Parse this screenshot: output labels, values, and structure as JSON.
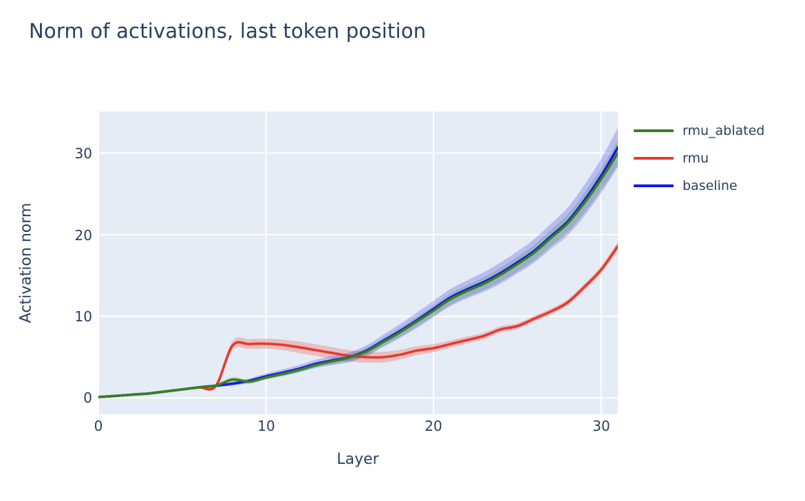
{
  "title": "Norm of activations, last token position",
  "colors": {
    "text": "#2a3f5f",
    "page_bg": "#ffffff",
    "plot_bg": "#e5ecf6",
    "grid": "#ffffff"
  },
  "legend": {
    "items": [
      {
        "label": "rmu_ablated"
      },
      {
        "label": "rmu"
      },
      {
        "label": "baseline"
      }
    ]
  },
  "chart_data": {
    "type": "line",
    "title": "Norm of activations, last token position",
    "xlabel": "Layer",
    "ylabel": "Activation norm",
    "x": [
      0,
      1,
      2,
      3,
      4,
      5,
      6,
      7,
      8,
      9,
      10,
      11,
      12,
      13,
      14,
      15,
      16,
      17,
      18,
      19,
      20,
      21,
      22,
      23,
      24,
      25,
      26,
      27,
      28,
      29,
      30,
      31
    ],
    "xticks": [
      "0",
      "10",
      "20",
      "30"
    ],
    "yticks": [
      "0",
      "10",
      "20",
      "30"
    ],
    "xtick_values": [
      0,
      10,
      20,
      30
    ],
    "ytick_values": [
      0,
      10,
      20,
      30
    ],
    "xlim": [
      0,
      31
    ],
    "ylim": [
      -2,
      35.1
    ],
    "grid": true,
    "legend_position": "outside-top-right",
    "series": [
      {
        "name": "rmu_ablated",
        "color": "#37801f",
        "band_opacity": 0.22,
        "values": [
          0.12,
          0.25,
          0.4,
          0.55,
          0.8,
          1.05,
          1.3,
          1.5,
          2.25,
          2.0,
          2.5,
          2.95,
          3.45,
          4.05,
          4.5,
          4.95,
          5.7,
          6.85,
          8.05,
          9.35,
          10.7,
          12.1,
          13.1,
          14.0,
          15.1,
          16.4,
          17.8,
          19.6,
          21.4,
          23.9,
          26.8,
          30.0
        ],
        "band": [
          0.05,
          0.05,
          0.06,
          0.08,
          0.1,
          0.12,
          0.14,
          0.16,
          0.3,
          0.25,
          0.25,
          0.28,
          0.3,
          0.33,
          0.36,
          0.4,
          0.45,
          0.5,
          0.55,
          0.6,
          0.65,
          0.7,
          0.72,
          0.78,
          0.85,
          0.9,
          0.95,
          1.0,
          1.1,
          1.2,
          1.35,
          1.55
        ]
      },
      {
        "name": "rmu",
        "color": "#e8392b",
        "band_opacity": 0.25,
        "values": [
          0.12,
          0.25,
          0.4,
          0.55,
          0.8,
          1.05,
          1.3,
          1.45,
          6.4,
          6.6,
          6.65,
          6.5,
          6.2,
          5.85,
          5.5,
          5.15,
          5.0,
          5.0,
          5.3,
          5.8,
          6.1,
          6.6,
          7.1,
          7.6,
          8.4,
          8.8,
          9.7,
          10.6,
          11.7,
          13.6,
          15.7,
          18.6
        ],
        "band": [
          0.05,
          0.06,
          0.07,
          0.09,
          0.11,
          0.13,
          0.15,
          0.18,
          0.55,
          0.6,
          0.62,
          0.65,
          0.7,
          0.72,
          0.72,
          0.7,
          0.68,
          0.65,
          0.6,
          0.55,
          0.5,
          0.45,
          0.42,
          0.4,
          0.38,
          0.36,
          0.35,
          0.35,
          0.37,
          0.4,
          0.45,
          0.55
        ]
      },
      {
        "name": "baseline",
        "color": "#1515e8",
        "band_opacity": 0.22,
        "values": [
          0.12,
          0.25,
          0.4,
          0.55,
          0.8,
          1.05,
          1.3,
          1.5,
          1.75,
          2.1,
          2.65,
          3.1,
          3.6,
          4.2,
          4.6,
          5.0,
          5.8,
          7.0,
          8.2,
          9.5,
          10.9,
          12.3,
          13.3,
          14.2,
          15.3,
          16.6,
          18.0,
          19.8,
          21.6,
          24.2,
          27.2,
          30.7
        ],
        "band": [
          0.06,
          0.07,
          0.08,
          0.1,
          0.12,
          0.15,
          0.18,
          0.2,
          0.25,
          0.3,
          0.35,
          0.4,
          0.45,
          0.5,
          0.55,
          0.6,
          0.65,
          0.75,
          0.85,
          0.95,
          1.0,
          1.05,
          1.1,
          1.2,
          1.3,
          1.35,
          1.45,
          1.55,
          1.7,
          1.9,
          2.1,
          2.4
        ]
      }
    ]
  }
}
